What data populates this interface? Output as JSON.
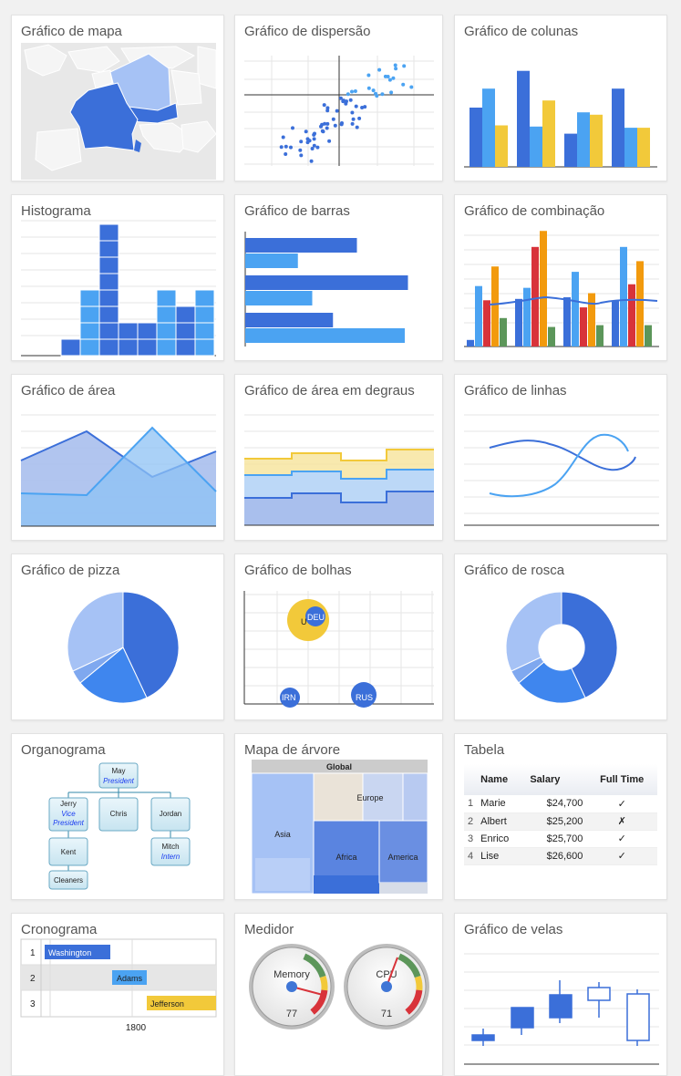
{
  "cards": [
    {
      "title": "Gráfico de mapa"
    },
    {
      "title": "Gráfico de dispersão"
    },
    {
      "title": "Gráfico de colunas"
    },
    {
      "title": "Histograma"
    },
    {
      "title": "Gráfico de barras"
    },
    {
      "title": "Gráfico de combinação"
    },
    {
      "title": "Gráfico de área"
    },
    {
      "title": "Gráfico de área em degraus"
    },
    {
      "title": "Gráfico de linhas"
    },
    {
      "title": "Gráfico de pizza"
    },
    {
      "title": "Gráfico de bolhas"
    },
    {
      "title": "Gráfico de rosca"
    },
    {
      "title": "Organograma"
    },
    {
      "title": "Mapa de árvore"
    },
    {
      "title": "Tabela"
    },
    {
      "title": "Cronograma"
    },
    {
      "title": "Medidor"
    },
    {
      "title": "Gráfico de velas"
    }
  ],
  "colors": {
    "blue": "#3b6fd9",
    "lightblue": "#4ba3f2",
    "paleblue": "#a6c2f5",
    "yellow": "#f2c93a",
    "red": "#d8333a",
    "orange": "#f29a0d",
    "green": "#5c965a"
  },
  "bubble": {
    "labels": [
      "U",
      "DEU",
      "IRN",
      "RUS"
    ]
  },
  "org": {
    "nodes": [
      {
        "name": "May",
        "role": "President"
      },
      {
        "name": "Jerry",
        "role": "Vice President"
      },
      {
        "name": "Chris",
        "role": ""
      },
      {
        "name": "Jordan",
        "role": ""
      },
      {
        "name": "Kent",
        "role": ""
      },
      {
        "name": "Mitch",
        "role": "Intern"
      },
      {
        "name": "Cleaners",
        "role": ""
      }
    ]
  },
  "treemap": {
    "root": "Global",
    "regions": [
      "Europe",
      "Asia",
      "Africa",
      "America"
    ]
  },
  "table": {
    "headers": [
      "Name",
      "Salary",
      "Full Time"
    ],
    "rows": [
      {
        "idx": "1",
        "name": "Marie",
        "salary": "$24,700",
        "full_time": "✓"
      },
      {
        "idx": "2",
        "name": "Albert",
        "salary": "$25,200",
        "full_time": "✗"
      },
      {
        "idx": "3",
        "name": "Enrico",
        "salary": "$25,700",
        "full_time": "✓"
      },
      {
        "idx": "4",
        "name": "Lise",
        "salary": "$26,600",
        "full_time": "✓"
      }
    ]
  },
  "timeline": {
    "rows": [
      "1",
      "2",
      "3"
    ],
    "bars": [
      "Washington",
      "Adams",
      "Jefferson"
    ],
    "axis_label": "1800"
  },
  "gauges": [
    {
      "label": "Memory",
      "value": 77
    },
    {
      "label": "CPU",
      "value": 71
    }
  ],
  "chart_data": [
    {
      "type": "bar",
      "series": [
        {
          "values": [
            5,
            6.6,
            3.5
          ]
        },
        {
          "values": [
            8.1,
            3.4,
            5.6
          ]
        },
        {
          "values": [
            2.8,
            4.6,
            4.4
          ]
        },
        {
          "values": [
            6.6,
            3.3,
            3.3
          ]
        }
      ]
    },
    {
      "type": "histogram",
      "values": [
        1,
        4,
        8,
        2,
        2,
        4,
        3,
        4
      ]
    },
    {
      "type": "bar",
      "orientation": "horizontal",
      "series": [
        {
          "values": [
            7,
            10.5,
            6
          ]
        },
        {
          "values": [
            3.3,
            4.4,
            10.2
          ]
        }
      ]
    },
    {
      "type": "area",
      "series": [
        {
          "values": [
            4,
            6,
            3,
            6
          ]
        },
        {
          "values": [
            2,
            2,
            6,
            2
          ]
        }
      ]
    },
    {
      "type": "line",
      "series": [
        {
          "values": [
            5.5,
            6,
            4,
            3
          ]
        },
        {
          "values": [
            2,
            2,
            6,
            4
          ]
        }
      ]
    },
    {
      "type": "pie",
      "values": [
        43,
        21,
        4,
        32
      ]
    },
    {
      "type": "pie",
      "hole": true,
      "values": [
        43,
        21,
        4,
        32
      ]
    }
  ]
}
